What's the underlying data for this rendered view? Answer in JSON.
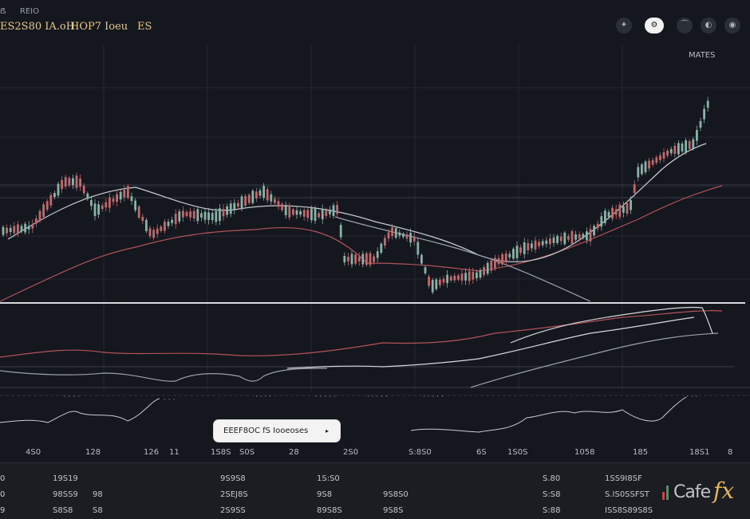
{
  "header": {
    "small_left": "ẞ",
    "small_label": "REIO",
    "symbols": [
      "ES2S80 IA.oH",
      "HOP7 Ioeu",
      "ES"
    ]
  },
  "toolbar": {
    "icons": [
      {
        "name": "alert-icon",
        "glyph": "✦"
      },
      {
        "name": "settings-icon",
        "glyph": "⚙"
      },
      {
        "name": "trend-icon",
        "glyph": "⁀"
      },
      {
        "name": "globe-icon",
        "glyph": "◐"
      },
      {
        "name": "camera-icon",
        "glyph": "◉"
      }
    ]
  },
  "legend_right": "MATES",
  "tooltip": {
    "text": "EEEF8OC fS Iooeoses",
    "caret": "▸"
  },
  "xaxis_labels": [
    "4S0",
    "128",
    "126",
    "11",
    "1S8S",
    "S0S",
    "28",
    "2S0",
    "S:8S0",
    "6S",
    "1S0S",
    "1058",
    "185",
    "18S1",
    "8"
  ],
  "table": {
    "rows": [
      [
        "0",
        "19S19",
        "9S9S8",
        "1S:S0",
        "S.80",
        "1SS9I8SF"
      ],
      [
        "0",
        "98SS9",
        "98",
        "2SEJ8S",
        "9S8",
        "9S8S0",
        "S:S8",
        "S.IS0SSFST"
      ],
      [
        "9",
        "S8S8",
        "S8",
        "2S9SS",
        "89S8S",
        "9S8S",
        "S:88",
        "ISS8S89S8S"
      ]
    ]
  },
  "logo": {
    "name": "Cafe",
    "suffix": "fx"
  },
  "colors": {
    "up": "#8ab3a8",
    "down": "#c06a6e",
    "ma_red": "#b3525a",
    "ma_white": "#d7d9dd"
  }
}
